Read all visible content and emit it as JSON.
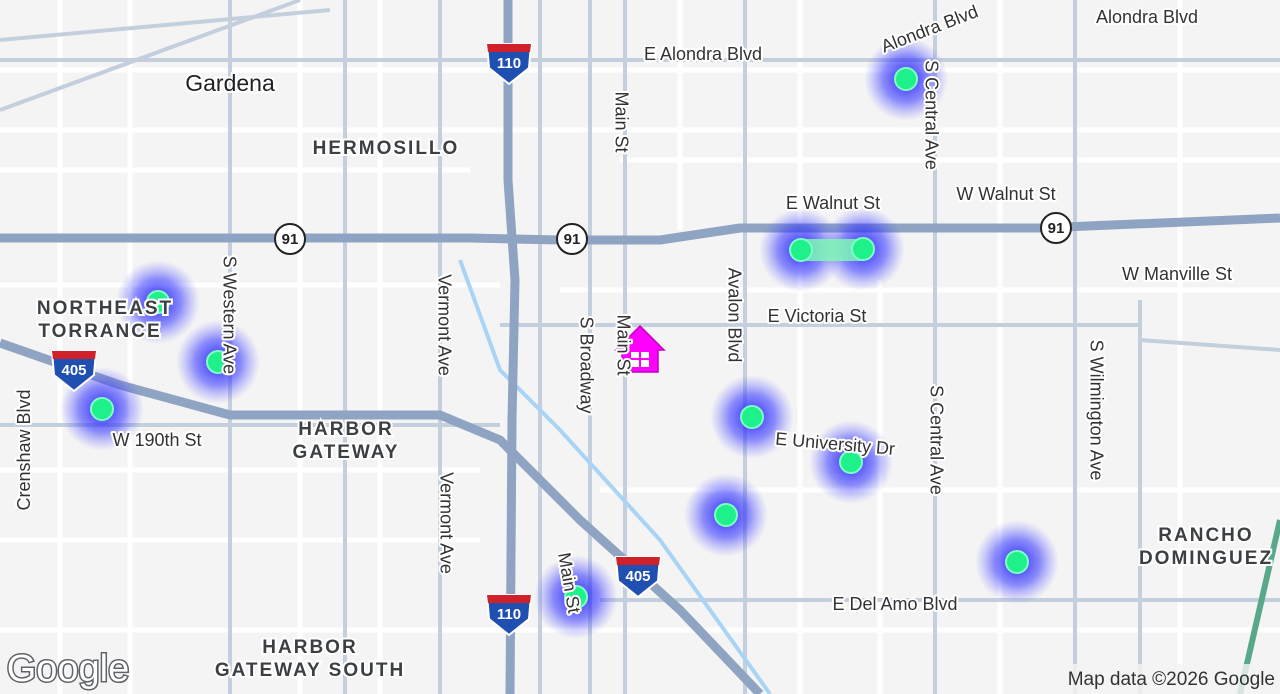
{
  "places": [
    "Gardena",
    "HERMOSILLO",
    "NORTHEAST",
    "TORRANCE",
    "HARBOR",
    "GATEWAY",
    "RANCHO",
    "DOMINGUEZ",
    "HARBOR",
    "GATEWAY SOUTH"
  ],
  "streets": [
    "Alondra Blvd",
    "Alondra Blvd",
    "E Alondra Blvd",
    "Main St",
    "S Central Ave",
    "E Walnut St",
    "W Walnut St",
    "W Manville St",
    "E Victoria St",
    "S Broadway",
    "Main St",
    "Avalon Blvd",
    "Vermont Ave",
    "S Western Ave",
    "Crenshaw Blvd",
    "W 190th St",
    "E University Dr",
    "S Central Ave",
    "S Wilmington Ave",
    "Vermont Ave",
    "Main St",
    "E Del Amo Blvd"
  ],
  "shields": [
    "110",
    "110",
    "405",
    "405",
    "91",
    "91",
    "91"
  ],
  "logo": "Google",
  "attribution": "Map data ©2026 Google"
}
